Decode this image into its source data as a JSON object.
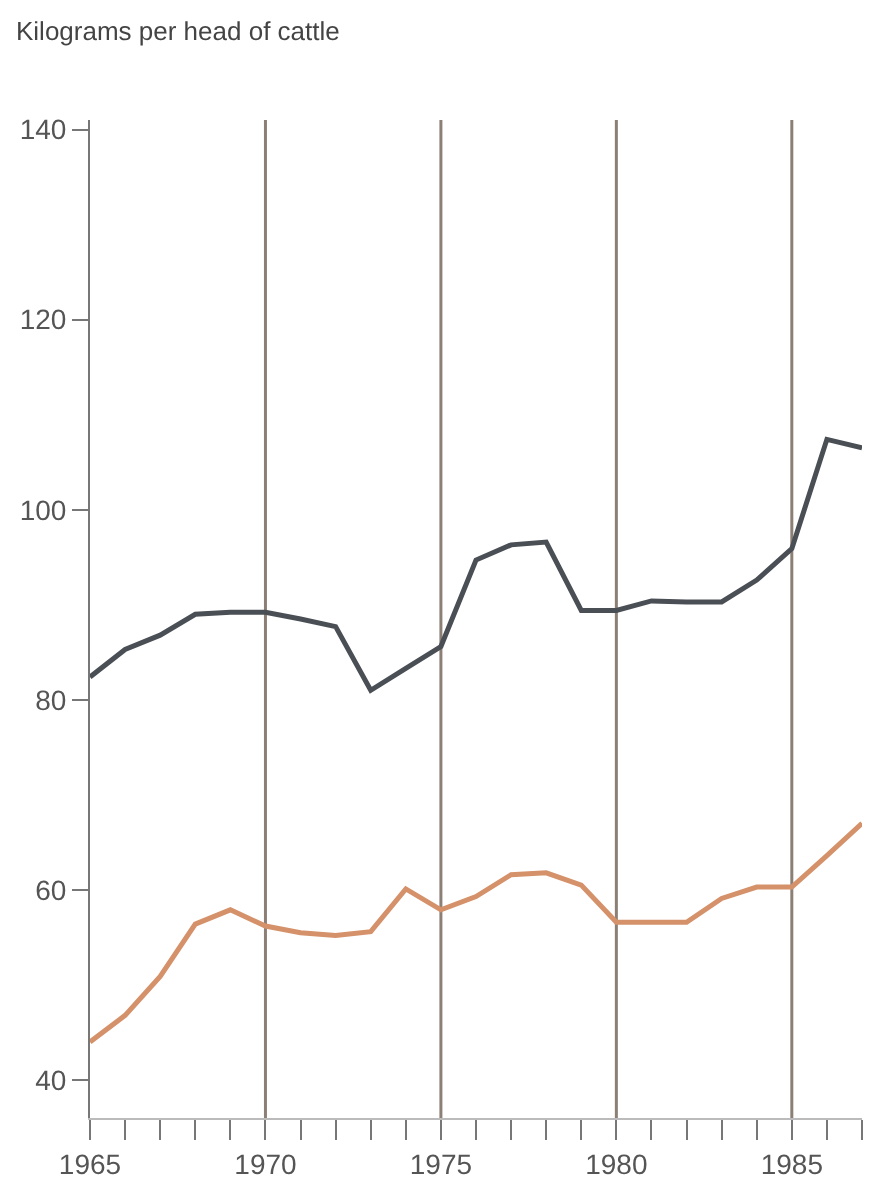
{
  "chart_data": {
    "type": "line",
    "ylabel": "Kilograms per head of cattle",
    "x": [
      1965,
      1966,
      1967,
      1968,
      1969,
      1970,
      1971,
      1972,
      1973,
      1974,
      1975,
      1976,
      1977,
      1978,
      1979,
      1980,
      1981,
      1982,
      1983,
      1984,
      1985,
      1986,
      1987
    ],
    "series": [
      {
        "color": "#4a4f55",
        "values": [
          82.4,
          85.3,
          86.8,
          89.0,
          89.2,
          89.2,
          88.5,
          87.7,
          81.0,
          83.3,
          85.6,
          94.7,
          96.3,
          96.6,
          89.4,
          89.4,
          90.4,
          90.3,
          90.3,
          92.6,
          95.9,
          107.4,
          106.5
        ]
      },
      {
        "color": "#d4916a",
        "values": [
          44.0,
          46.8,
          50.9,
          56.4,
          57.9,
          56.2,
          55.5,
          55.2,
          55.6,
          60.1,
          57.9,
          59.3,
          61.6,
          61.8,
          60.5,
          56.6,
          56.6,
          56.6,
          59.1,
          60.3,
          60.3,
          63.6,
          67.0
        ]
      }
    ],
    "xlim": [
      1965,
      1987
    ],
    "ylim": [
      36,
      141
    ],
    "xticks": [
      1965,
      {
        "value": 1966,
        "label": null
      },
      {
        "value": 1967,
        "label": null
      },
      {
        "value": 1968,
        "label": null
      },
      {
        "value": 1969,
        "label": null
      },
      1970,
      {
        "value": 1971,
        "label": null
      },
      {
        "value": 1972,
        "label": null
      },
      {
        "value": 1973,
        "label": null
      },
      {
        "value": 1974,
        "label": null
      },
      1975,
      {
        "value": 1976,
        "label": null
      },
      {
        "value": 1977,
        "label": null
      },
      {
        "value": 1978,
        "label": null
      },
      {
        "value": 1979,
        "label": null
      },
      1980,
      {
        "value": 1981,
        "label": null
      },
      {
        "value": 1982,
        "label": null
      },
      {
        "value": 1983,
        "label": null
      },
      {
        "value": 1984,
        "label": null
      },
      1985,
      {
        "value": 1986,
        "label": null
      },
      {
        "value": 1987,
        "label": null
      }
    ],
    "yticks": [
      40,
      60,
      80,
      100,
      120,
      140
    ],
    "ref_lines": [
      {
        "axis": "x",
        "value": 1970,
        "color": "#8c7f76"
      },
      {
        "axis": "x",
        "value": 1975,
        "color": "#8c7f76"
      },
      {
        "axis": "x",
        "value": 1980,
        "color": "#8c7f76"
      },
      {
        "axis": "x",
        "value": 1985,
        "color": "#8c7f76"
      }
    ],
    "grid": false,
    "marker": "none",
    "line_style": "solid"
  }
}
